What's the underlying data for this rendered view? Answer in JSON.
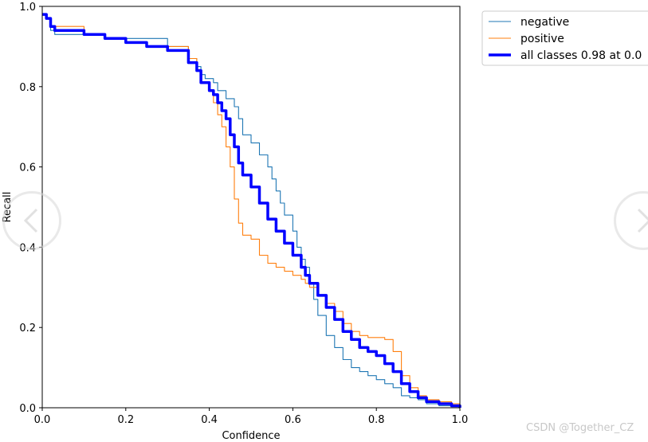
{
  "chart_data": {
    "type": "line",
    "xlabel": "Confidence",
    "ylabel": "Recall",
    "xlim": [
      0.0,
      1.0
    ],
    "ylim": [
      0.0,
      1.0
    ],
    "xticks": [
      "0.0",
      "0.2",
      "0.4",
      "0.6",
      "0.8",
      "1.0"
    ],
    "yticks": [
      "0.0",
      "0.2",
      "0.4",
      "0.6",
      "0.8",
      "1.0"
    ],
    "grid": false,
    "legend_position": "outside top-right",
    "series": [
      {
        "name": "negative",
        "color": "#1f77b4",
        "x": [
          0.0,
          0.01,
          0.02,
          0.03,
          0.05,
          0.1,
          0.15,
          0.2,
          0.25,
          0.3,
          0.33,
          0.35,
          0.37,
          0.38,
          0.39,
          0.4,
          0.41,
          0.42,
          0.44,
          0.46,
          0.47,
          0.48,
          0.5,
          0.52,
          0.54,
          0.55,
          0.56,
          0.57,
          0.58,
          0.6,
          0.61,
          0.62,
          0.63,
          0.64,
          0.65,
          0.66,
          0.68,
          0.7,
          0.72,
          0.74,
          0.76,
          0.78,
          0.8,
          0.82,
          0.84,
          0.86,
          0.88,
          0.9,
          0.92,
          0.95,
          0.98,
          1.0
        ],
        "y": [
          0.98,
          0.97,
          0.94,
          0.93,
          0.93,
          0.93,
          0.92,
          0.92,
          0.92,
          0.9,
          0.9,
          0.87,
          0.85,
          0.83,
          0.82,
          0.82,
          0.81,
          0.79,
          0.77,
          0.75,
          0.72,
          0.68,
          0.66,
          0.63,
          0.6,
          0.57,
          0.54,
          0.51,
          0.48,
          0.44,
          0.4,
          0.37,
          0.35,
          0.31,
          0.27,
          0.23,
          0.18,
          0.15,
          0.12,
          0.1,
          0.09,
          0.08,
          0.07,
          0.06,
          0.05,
          0.03,
          0.025,
          0.02,
          0.01,
          0.005,
          0.003,
          0.0
        ]
      },
      {
        "name": "positive",
        "color": "#ff7f0e",
        "x": [
          0.0,
          0.01,
          0.02,
          0.03,
          0.05,
          0.1,
          0.15,
          0.2,
          0.25,
          0.3,
          0.33,
          0.35,
          0.37,
          0.38,
          0.4,
          0.41,
          0.42,
          0.43,
          0.44,
          0.45,
          0.46,
          0.47,
          0.48,
          0.5,
          0.52,
          0.54,
          0.56,
          0.58,
          0.6,
          0.62,
          0.63,
          0.64,
          0.66,
          0.68,
          0.7,
          0.72,
          0.74,
          0.76,
          0.78,
          0.8,
          0.82,
          0.84,
          0.86,
          0.88,
          0.9,
          0.92,
          0.95,
          0.98,
          1.0
        ],
        "y": [
          0.98,
          0.97,
          0.95,
          0.95,
          0.95,
          0.93,
          0.92,
          0.91,
          0.9,
          0.9,
          0.9,
          0.87,
          0.84,
          0.81,
          0.79,
          0.76,
          0.73,
          0.7,
          0.65,
          0.6,
          0.52,
          0.46,
          0.43,
          0.42,
          0.38,
          0.36,
          0.35,
          0.34,
          0.33,
          0.32,
          0.31,
          0.3,
          0.28,
          0.26,
          0.24,
          0.21,
          0.19,
          0.18,
          0.175,
          0.175,
          0.17,
          0.14,
          0.08,
          0.05,
          0.03,
          0.02,
          0.015,
          0.01,
          0.005
        ]
      },
      {
        "name": "all classes 0.98 at 0.0",
        "color": "#0000ff",
        "x": [
          0.0,
          0.01,
          0.02,
          0.03,
          0.05,
          0.1,
          0.15,
          0.2,
          0.25,
          0.3,
          0.33,
          0.35,
          0.37,
          0.38,
          0.4,
          0.41,
          0.42,
          0.43,
          0.44,
          0.45,
          0.46,
          0.47,
          0.48,
          0.5,
          0.52,
          0.54,
          0.56,
          0.58,
          0.6,
          0.62,
          0.63,
          0.64,
          0.66,
          0.68,
          0.7,
          0.72,
          0.74,
          0.76,
          0.78,
          0.8,
          0.82,
          0.84,
          0.86,
          0.88,
          0.9,
          0.92,
          0.95,
          0.98,
          1.0
        ],
        "y": [
          0.98,
          0.97,
          0.95,
          0.94,
          0.94,
          0.93,
          0.92,
          0.91,
          0.9,
          0.89,
          0.89,
          0.86,
          0.84,
          0.81,
          0.79,
          0.78,
          0.76,
          0.74,
          0.72,
          0.68,
          0.65,
          0.61,
          0.58,
          0.55,
          0.51,
          0.47,
          0.44,
          0.41,
          0.38,
          0.35,
          0.33,
          0.31,
          0.28,
          0.25,
          0.22,
          0.19,
          0.17,
          0.15,
          0.14,
          0.13,
          0.11,
          0.09,
          0.06,
          0.04,
          0.025,
          0.015,
          0.01,
          0.005,
          0.0
        ]
      }
    ]
  },
  "nav": {
    "prev_icon": "chevron-left-icon",
    "next_icon": "chevron-right-icon"
  },
  "watermark": "CSDN @Together_CZ"
}
